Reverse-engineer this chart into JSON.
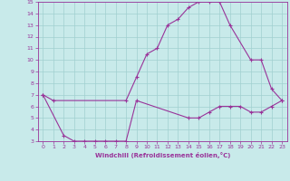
{
  "xlabel": "Windchill (Refroidissement éolien,°C)",
  "xlim": [
    -0.5,
    23.5
  ],
  "ylim": [
    3,
    15
  ],
  "xticks": [
    0,
    1,
    2,
    3,
    4,
    5,
    6,
    7,
    8,
    9,
    10,
    11,
    12,
    13,
    14,
    15,
    16,
    17,
    18,
    19,
    20,
    21,
    22,
    23
  ],
  "yticks": [
    3,
    4,
    5,
    6,
    7,
    8,
    9,
    10,
    11,
    12,
    13,
    14,
    15
  ],
  "bg_color": "#c8eaea",
  "grid_color": "#a0d0d0",
  "line_color": "#993399",
  "upper_line": {
    "x": [
      0,
      1,
      8,
      9,
      10,
      11,
      12,
      13,
      14,
      15,
      16,
      17,
      18,
      20,
      21,
      22,
      23
    ],
    "y": [
      7,
      6.5,
      6.5,
      8.5,
      10.5,
      11,
      13,
      13.5,
      14.5,
      15,
      15,
      15,
      13,
      10,
      10,
      7.5,
      6.5
    ]
  },
  "lower_line": {
    "x": [
      0,
      2,
      3,
      4,
      5,
      6,
      7,
      8,
      9,
      14,
      15,
      16,
      17,
      18,
      19,
      20,
      21,
      22,
      23
    ],
    "y": [
      7,
      3.5,
      3,
      3,
      3,
      3,
      3,
      3,
      6.5,
      5,
      5,
      5.5,
      6,
      6,
      6,
      5.5,
      5.5,
      6,
      6.5
    ]
  }
}
